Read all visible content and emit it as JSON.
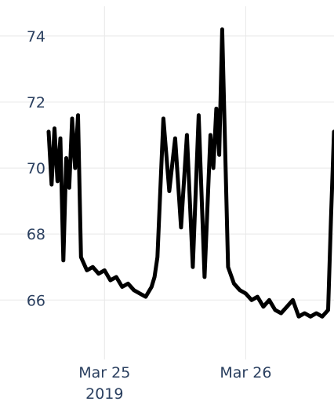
{
  "chart_data": {
    "type": "line",
    "title": "",
    "xlabel": "",
    "ylabel": "",
    "ylim": [
      64.2,
      74.9
    ],
    "x_range": [
      "2019-03-24 14:30",
      "2019-03-26 15:00"
    ],
    "grid": true,
    "yticks": [
      {
        "value": 66,
        "label": "66"
      },
      {
        "value": 68,
        "label": "68"
      },
      {
        "value": 70,
        "label": "70"
      },
      {
        "value": 72,
        "label": "72"
      },
      {
        "value": 74,
        "label": "74"
      }
    ],
    "xticks": [
      {
        "value": "2019-03-25 00:00",
        "label": "Mar 25",
        "sublabel": "2019"
      },
      {
        "value": "2019-03-26 00:00",
        "label": "Mar 26",
        "sublabel": ""
      }
    ],
    "series": [
      {
        "color": "#000000",
        "x": [
          "2019-03-24 14:30",
          "2019-03-24 15:00",
          "2019-03-24 15:30",
          "2019-03-24 16:00",
          "2019-03-24 16:30",
          "2019-03-24 17:00",
          "2019-03-24 17:30",
          "2019-03-24 18:00",
          "2019-03-24 18:30",
          "2019-03-24 19:00",
          "2019-03-24 19:30",
          "2019-03-24 20:00",
          "2019-03-24 21:00",
          "2019-03-24 22:00",
          "2019-03-24 23:00",
          "2019-03-25 00:00",
          "2019-03-25 01:00",
          "2019-03-25 02:00",
          "2019-03-25 03:00",
          "2019-03-25 04:00",
          "2019-03-25 05:00",
          "2019-03-25 06:00",
          "2019-03-25 07:00",
          "2019-03-25 08:00",
          "2019-03-25 08:30",
          "2019-03-25 09:00",
          "2019-03-25 10:00",
          "2019-03-25 11:00",
          "2019-03-25 12:00",
          "2019-03-25 13:00",
          "2019-03-25 14:00",
          "2019-03-25 15:00",
          "2019-03-25 16:00",
          "2019-03-25 17:00",
          "2019-03-25 18:00",
          "2019-03-25 18:30",
          "2019-03-25 19:00",
          "2019-03-25 19:30",
          "2019-03-25 20:00",
          "2019-03-25 21:00",
          "2019-03-25 22:00",
          "2019-03-25 23:00",
          "2019-03-26 00:00",
          "2019-03-26 01:00",
          "2019-03-26 02:00",
          "2019-03-26 03:00",
          "2019-03-26 04:00",
          "2019-03-26 05:00",
          "2019-03-26 06:00",
          "2019-03-26 07:00",
          "2019-03-26 08:00",
          "2019-03-26 09:00",
          "2019-03-26 10:00",
          "2019-03-26 11:00",
          "2019-03-26 12:00",
          "2019-03-26 13:00",
          "2019-03-26 14:00",
          "2019-03-26 14:30",
          "2019-03-26 15:00"
        ],
        "y": [
          71.1,
          69.5,
          71.2,
          69.6,
          70.9,
          67.2,
          70.3,
          69.4,
          71.5,
          70.0,
          71.6,
          67.3,
          66.9,
          67.0,
          66.8,
          66.9,
          66.6,
          66.7,
          66.4,
          66.5,
          66.3,
          66.2,
          66.1,
          66.4,
          66.7,
          67.3,
          71.5,
          69.3,
          70.9,
          68.2,
          71.0,
          67.0,
          71.6,
          66.7,
          71.0,
          70.0,
          71.8,
          70.4,
          74.2,
          67.0,
          66.5,
          66.3,
          66.2,
          66.0,
          66.1,
          65.8,
          66.0,
          65.7,
          65.6,
          65.8,
          66.0,
          65.5,
          65.6,
          65.5,
          65.6,
          65.5,
          65.7,
          68.5,
          71.1
        ]
      }
    ]
  }
}
